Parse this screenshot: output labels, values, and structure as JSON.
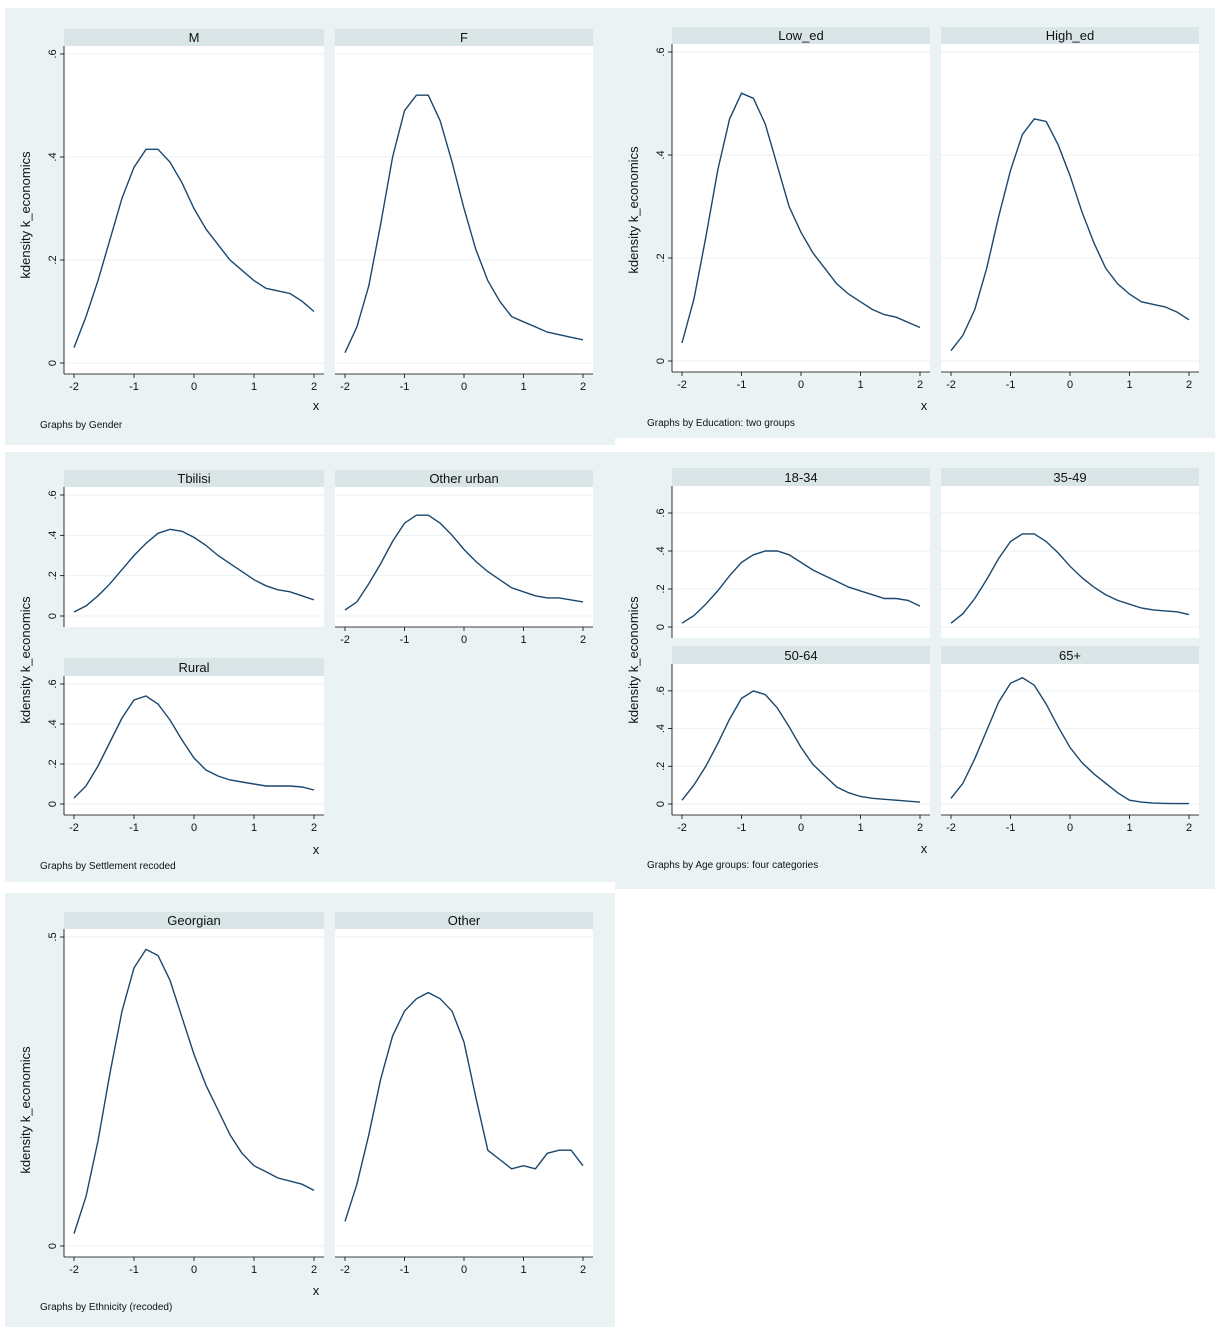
{
  "colors": {
    "background": "#eaf2f3",
    "strip": "#d9e5e7",
    "plot": "#ffffff",
    "line": "#1a476f"
  },
  "chart_data": [
    {
      "type": "line",
      "by_note": "Graphs by Gender",
      "ylabel": "kdensity k_economics",
      "xlabel": "x",
      "xlim": [
        -2,
        2
      ],
      "ylim": [
        0,
        0.6
      ],
      "xticks": [
        -2,
        -1,
        0,
        1,
        2
      ],
      "yticks": [
        0,
        0.2,
        0.4,
        0.6
      ],
      "yticklabels": [
        "0",
        ".2",
        ".4",
        ".6"
      ],
      "grid": true,
      "series": [
        {
          "name": "M",
          "x": [
            -2,
            -1.8,
            -1.6,
            -1.4,
            -1.2,
            -1,
            -0.8,
            -0.6,
            -0.4,
            -0.2,
            0,
            0.2,
            0.4,
            0.6,
            0.8,
            1,
            1.2,
            1.4,
            1.6,
            1.8,
            2
          ],
          "y": [
            0.03,
            0.09,
            0.16,
            0.24,
            0.32,
            0.38,
            0.415,
            0.415,
            0.39,
            0.35,
            0.3,
            0.26,
            0.23,
            0.2,
            0.18,
            0.16,
            0.145,
            0.14,
            0.135,
            0.12,
            0.1
          ]
        },
        {
          "name": "F",
          "x": [
            -2,
            -1.8,
            -1.6,
            -1.4,
            -1.2,
            -1,
            -0.8,
            -0.6,
            -0.4,
            -0.2,
            0,
            0.2,
            0.4,
            0.6,
            0.8,
            1,
            1.2,
            1.4,
            1.6,
            1.8,
            2
          ],
          "y": [
            0.02,
            0.07,
            0.15,
            0.27,
            0.4,
            0.49,
            0.52,
            0.52,
            0.47,
            0.39,
            0.3,
            0.22,
            0.16,
            0.12,
            0.09,
            0.08,
            0.07,
            0.06,
            0.055,
            0.05,
            0.045
          ]
        }
      ]
    },
    {
      "type": "line",
      "by_note": "Graphs by Education: two groups",
      "ylabel": "kdensity k_economics",
      "xlabel": "x",
      "xlim": [
        -2,
        2
      ],
      "ylim": [
        0,
        0.6
      ],
      "xticks": [
        -2,
        -1,
        0,
        1,
        2
      ],
      "yticks": [
        0,
        0.2,
        0.4,
        0.6
      ],
      "yticklabels": [
        "0",
        ".2",
        ".4",
        ".6"
      ],
      "grid": true,
      "series": [
        {
          "name": "Low_ed",
          "x": [
            -2,
            -1.8,
            -1.6,
            -1.4,
            -1.2,
            -1,
            -0.8,
            -0.6,
            -0.4,
            -0.2,
            0,
            0.2,
            0.4,
            0.6,
            0.8,
            1,
            1.2,
            1.4,
            1.6,
            1.8,
            2
          ],
          "y": [
            0.035,
            0.12,
            0.24,
            0.37,
            0.47,
            0.52,
            0.51,
            0.46,
            0.38,
            0.3,
            0.25,
            0.21,
            0.18,
            0.15,
            0.13,
            0.115,
            0.1,
            0.09,
            0.085,
            0.075,
            0.065
          ]
        },
        {
          "name": "High_ed",
          "x": [
            -2,
            -1.8,
            -1.6,
            -1.4,
            -1.2,
            -1,
            -0.8,
            -0.6,
            -0.4,
            -0.2,
            0,
            0.2,
            0.4,
            0.6,
            0.8,
            1,
            1.2,
            1.4,
            1.6,
            1.8,
            2
          ],
          "y": [
            0.02,
            0.05,
            0.1,
            0.18,
            0.28,
            0.37,
            0.44,
            0.47,
            0.465,
            0.42,
            0.36,
            0.29,
            0.23,
            0.18,
            0.15,
            0.13,
            0.115,
            0.11,
            0.105,
            0.095,
            0.08
          ]
        }
      ]
    },
    {
      "type": "line",
      "by_note": "Graphs by Settlement recoded",
      "ylabel": "kdensity k_economics",
      "xlabel": "x",
      "xlim": [
        -2,
        2
      ],
      "ylim": [
        0,
        0.6
      ],
      "xticks": [
        -2,
        -1,
        0,
        1,
        2
      ],
      "yticks": [
        0,
        0.2,
        0.4,
        0.6
      ],
      "yticklabels": [
        "0",
        ".2",
        ".4",
        ".6"
      ],
      "grid": true,
      "series": [
        {
          "name": "Tbilisi",
          "x": [
            -2,
            -1.8,
            -1.6,
            -1.4,
            -1.2,
            -1,
            -0.8,
            -0.6,
            -0.4,
            -0.2,
            0,
            0.2,
            0.4,
            0.6,
            0.8,
            1,
            1.2,
            1.4,
            1.6,
            1.8,
            2
          ],
          "y": [
            0.02,
            0.05,
            0.1,
            0.16,
            0.23,
            0.3,
            0.36,
            0.41,
            0.43,
            0.42,
            0.39,
            0.35,
            0.3,
            0.26,
            0.22,
            0.18,
            0.15,
            0.13,
            0.12,
            0.1,
            0.08
          ]
        },
        {
          "name": "Other urban",
          "x": [
            -2,
            -1.8,
            -1.6,
            -1.4,
            -1.2,
            -1,
            -0.8,
            -0.6,
            -0.4,
            -0.2,
            0,
            0.2,
            0.4,
            0.6,
            0.8,
            1,
            1.2,
            1.4,
            1.6,
            1.8,
            2
          ],
          "y": [
            0.03,
            0.07,
            0.16,
            0.26,
            0.37,
            0.46,
            0.5,
            0.5,
            0.46,
            0.4,
            0.33,
            0.27,
            0.22,
            0.18,
            0.14,
            0.12,
            0.1,
            0.09,
            0.09,
            0.08,
            0.07
          ]
        },
        {
          "name": "Rural",
          "x": [
            -2,
            -1.8,
            -1.6,
            -1.4,
            -1.2,
            -1,
            -0.8,
            -0.6,
            -0.4,
            -0.2,
            0,
            0.2,
            0.4,
            0.6,
            0.8,
            1,
            1.2,
            1.4,
            1.6,
            1.8,
            2
          ],
          "y": [
            0.03,
            0.09,
            0.19,
            0.31,
            0.43,
            0.52,
            0.54,
            0.5,
            0.42,
            0.32,
            0.23,
            0.17,
            0.14,
            0.12,
            0.11,
            0.1,
            0.09,
            0.09,
            0.09,
            0.085,
            0.07
          ]
        }
      ]
    },
    {
      "type": "line",
      "by_note": "Graphs by Age groups: four categories",
      "ylabel": "kdensity k_economics",
      "xlabel": "x",
      "xlim": [
        -2,
        2
      ],
      "ylim": [
        0,
        0.7
      ],
      "xticks": [
        -2,
        -1,
        0,
        1,
        2
      ],
      "yticks": [
        0,
        0.2,
        0.4,
        0.6
      ],
      "yticklabels": [
        "0",
        ".2",
        ".4",
        ".6"
      ],
      "grid": true,
      "series": [
        {
          "name": "18-34",
          "x": [
            -2,
            -1.8,
            -1.6,
            -1.4,
            -1.2,
            -1,
            -0.8,
            -0.6,
            -0.4,
            -0.2,
            0,
            0.2,
            0.4,
            0.6,
            0.8,
            1,
            1.2,
            1.4,
            1.6,
            1.8,
            2
          ],
          "y": [
            0.02,
            0.06,
            0.12,
            0.19,
            0.27,
            0.34,
            0.38,
            0.4,
            0.4,
            0.38,
            0.34,
            0.3,
            0.27,
            0.24,
            0.21,
            0.19,
            0.17,
            0.15,
            0.15,
            0.14,
            0.11
          ]
        },
        {
          "name": "35-49",
          "x": [
            -2,
            -1.8,
            -1.6,
            -1.4,
            -1.2,
            -1,
            -0.8,
            -0.6,
            -0.4,
            -0.2,
            0,
            0.2,
            0.4,
            0.6,
            0.8,
            1,
            1.2,
            1.4,
            1.6,
            1.8,
            2
          ],
          "y": [
            0.02,
            0.07,
            0.15,
            0.25,
            0.36,
            0.45,
            0.49,
            0.49,
            0.45,
            0.39,
            0.32,
            0.26,
            0.21,
            0.17,
            0.14,
            0.12,
            0.1,
            0.09,
            0.085,
            0.08,
            0.065
          ]
        },
        {
          "name": "50-64",
          "x": [
            -2,
            -1.8,
            -1.6,
            -1.4,
            -1.2,
            -1,
            -0.8,
            -0.6,
            -0.4,
            -0.2,
            0,
            0.2,
            0.4,
            0.6,
            0.8,
            1,
            1.2,
            1.4,
            1.6,
            1.8,
            2
          ],
          "y": [
            0.02,
            0.1,
            0.2,
            0.32,
            0.45,
            0.56,
            0.6,
            0.58,
            0.51,
            0.41,
            0.3,
            0.21,
            0.15,
            0.09,
            0.06,
            0.04,
            0.03,
            0.025,
            0.02,
            0.015,
            0.01
          ]
        },
        {
          "name": "65+",
          "x": [
            -2,
            -1.8,
            -1.6,
            -1.4,
            -1.2,
            -1,
            -0.8,
            -0.6,
            -0.4,
            -0.2,
            0,
            0.2,
            0.4,
            0.6,
            0.8,
            1,
            1.2,
            1.4,
            1.6,
            1.8,
            2
          ],
          "y": [
            0.03,
            0.11,
            0.24,
            0.39,
            0.54,
            0.64,
            0.67,
            0.63,
            0.53,
            0.41,
            0.3,
            0.22,
            0.16,
            0.11,
            0.06,
            0.02,
            0.01,
            0.005,
            0.003,
            0.002,
            0.002
          ]
        }
      ]
    },
    {
      "type": "line",
      "by_note": "Graphs by Ethnicity (recoded)",
      "ylabel": "kdensity k_economics",
      "xlabel": "x",
      "xlim": [
        -2,
        2
      ],
      "ylim": [
        0,
        0.5
      ],
      "xticks": [
        -2,
        -1,
        0,
        1,
        2
      ],
      "yticks": [
        0,
        0.5
      ],
      "yticklabels": [
        "0",
        ".5"
      ],
      "grid": true,
      "series": [
        {
          "name": "Georgian",
          "x": [
            -2,
            -1.8,
            -1.6,
            -1.4,
            -1.2,
            -1,
            -0.8,
            -0.6,
            -0.4,
            -0.2,
            0,
            0.2,
            0.4,
            0.6,
            0.8,
            1,
            1.2,
            1.4,
            1.6,
            1.8,
            2
          ],
          "y": [
            0.02,
            0.08,
            0.17,
            0.28,
            0.38,
            0.45,
            0.48,
            0.47,
            0.43,
            0.37,
            0.31,
            0.26,
            0.22,
            0.18,
            0.15,
            0.13,
            0.12,
            0.11,
            0.105,
            0.1,
            0.09
          ]
        },
        {
          "name": "Other",
          "x": [
            -2,
            -1.8,
            -1.6,
            -1.4,
            -1.2,
            -1,
            -0.8,
            -0.6,
            -0.4,
            -0.2,
            0,
            0.2,
            0.4,
            0.6,
            0.8,
            1,
            1.2,
            1.4,
            1.6,
            1.8,
            2
          ],
          "y": [
            0.04,
            0.1,
            0.18,
            0.27,
            0.34,
            0.38,
            0.4,
            0.41,
            0.4,
            0.38,
            0.33,
            0.24,
            0.155,
            0.14,
            0.125,
            0.13,
            0.125,
            0.15,
            0.155,
            0.155,
            0.13
          ]
        }
      ]
    }
  ]
}
